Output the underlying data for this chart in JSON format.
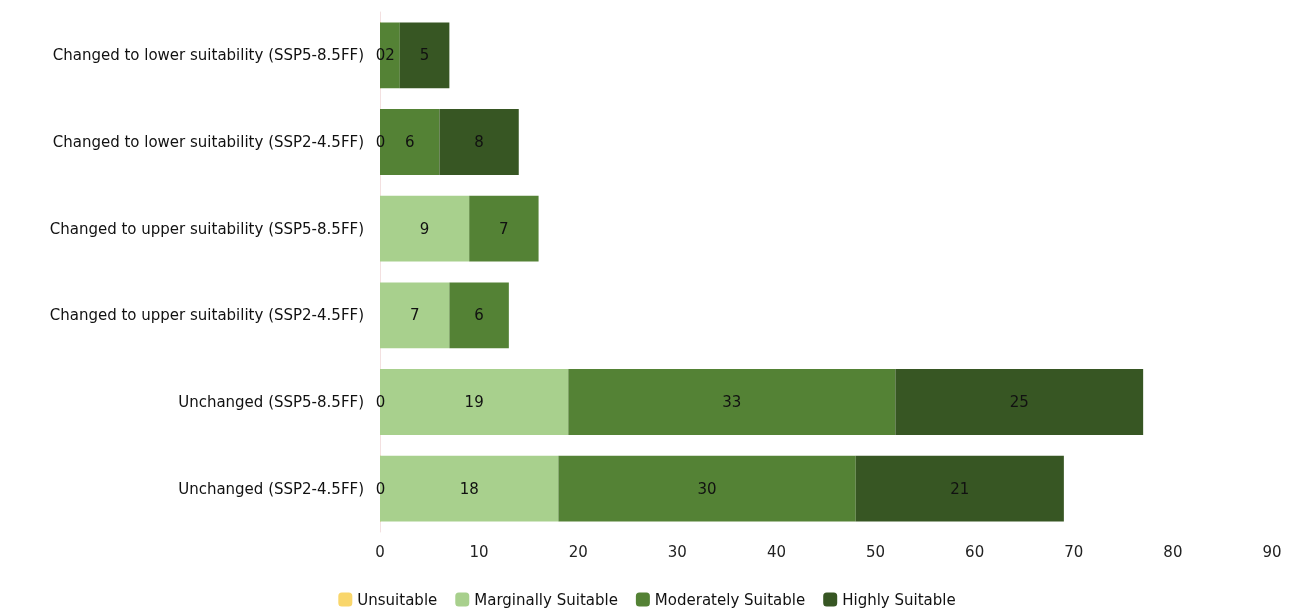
{
  "chart_data": {
    "type": "bar",
    "orientation": "horizontal",
    "stacked": true,
    "grid": false,
    "legend": "bottom",
    "categories": [
      "Changed to lower suitability (SSP5-8.5FF)",
      "Changed to lower suitability (SSP2-4.5FF)",
      "Changed to upper suitability (SSP5-8.5FF)",
      "Changed to upper suitability (SSP2-4.5FF)",
      "Unchanged (SSP5-8.5FF)",
      "Unchanged (SSP2-4.5FF)"
    ],
    "series": [
      {
        "name": "Unsuitable",
        "color": "#f9d66b",
        "values": [
          0,
          0,
          null,
          null,
          0,
          0
        ],
        "value_labels": [
          "0",
          "0",
          null,
          null,
          "0",
          "0"
        ]
      },
      {
        "name": "Marginally Suitable",
        "color": "#a8d08d",
        "values": [
          null,
          null,
          9,
          7,
          19,
          18
        ],
        "value_labels": [
          null,
          null,
          "9",
          "7",
          "19",
          "18"
        ]
      },
      {
        "name": "Moderately Suitable",
        "color": "#548235",
        "values": [
          2,
          6,
          7,
          6,
          33,
          30
        ],
        "value_labels": [
          "2",
          "6",
          "7",
          "6",
          "33",
          "30"
        ]
      },
      {
        "name": "Highly Suitable",
        "color": "#375623",
        "values": [
          5,
          8,
          null,
          null,
          25,
          21
        ],
        "value_labels": [
          "5",
          "8",
          null,
          null,
          "25",
          "21"
        ]
      }
    ],
    "xlim": [
      0,
      90
    ],
    "xticks": [
      0,
      10,
      20,
      30,
      40,
      50,
      60,
      70,
      80,
      90
    ]
  }
}
